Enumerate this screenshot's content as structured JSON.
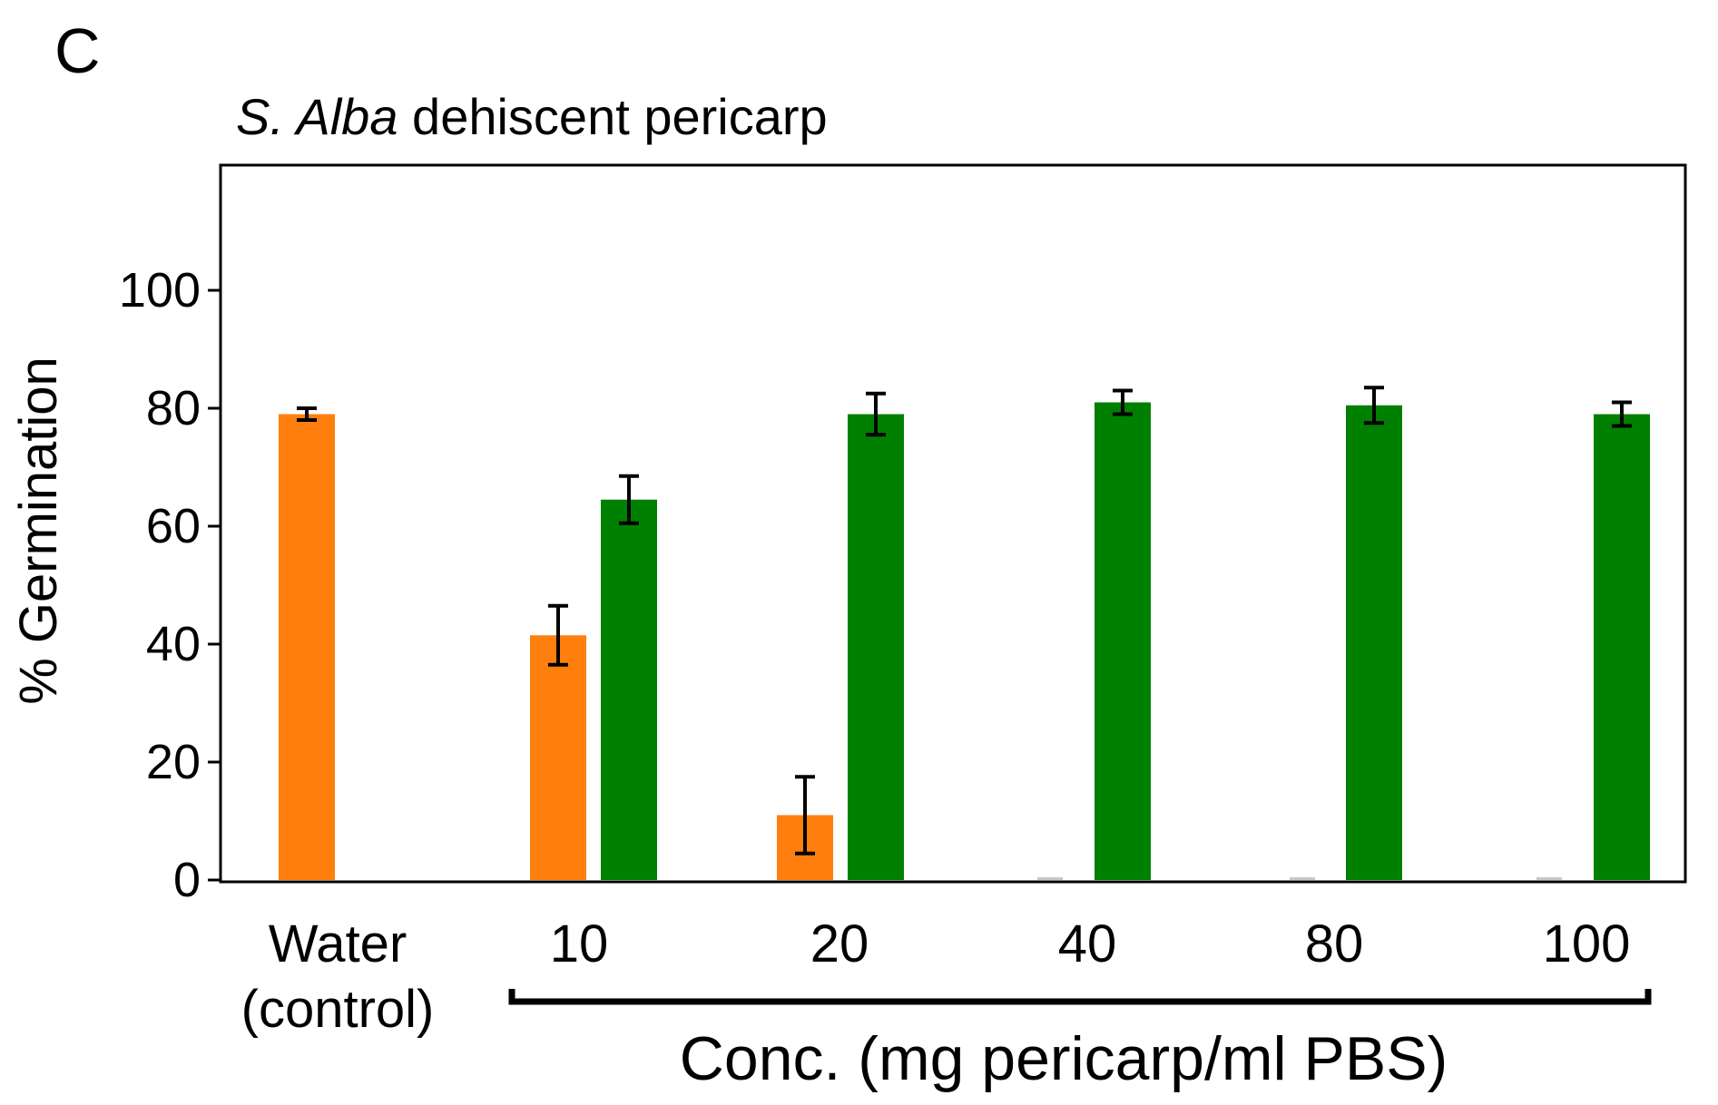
{
  "panel_label": "C",
  "chart_data": {
    "type": "bar",
    "title_italic": "S. Alba",
    "title_rest": " dehiscent pericarp",
    "ylabel": "% Germination",
    "xlabel": "Conc. (mg pericarp/ml PBS)",
    "ylim": [
      0,
      120
    ],
    "yticks": [
      0,
      20,
      40,
      60,
      80,
      100
    ],
    "categories": [
      {
        "label_line1": "Water",
        "label_line2": "(control)"
      },
      {
        "label_line1": "10",
        "label_line2": ""
      },
      {
        "label_line1": "20",
        "label_line2": ""
      },
      {
        "label_line1": "40",
        "label_line2": ""
      },
      {
        "label_line1": "80",
        "label_line2": ""
      },
      {
        "label_line1": "100",
        "label_line2": ""
      }
    ],
    "series": [
      {
        "name": "orange",
        "color": "#ff7f0e",
        "values": [
          79,
          41.5,
          11,
          0,
          0,
          0
        ],
        "errors": [
          1,
          5,
          6.5,
          0,
          0,
          0
        ]
      },
      {
        "name": "green",
        "color": "#008000",
        "values": [
          null,
          64.5,
          79,
          81,
          80.5,
          79
        ],
        "errors": [
          null,
          4,
          3.5,
          2,
          3,
          2
        ]
      }
    ],
    "bracket_spans_categories": [
      1,
      5
    ]
  }
}
